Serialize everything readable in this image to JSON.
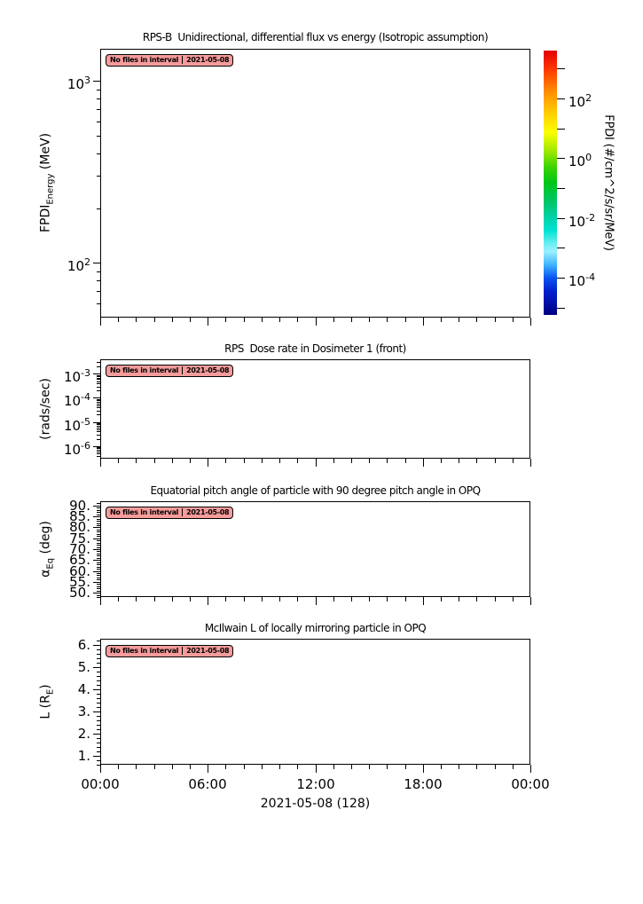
{
  "app": {
    "background": "#ffffff"
  },
  "no_files_badge": {
    "text": "No files in interval",
    "date": "2021-05-08",
    "bg": "#f59b9b",
    "border": "#000000"
  },
  "time_axis": {
    "tick_labels": [
      "00:00",
      "06:00",
      "12:00",
      "18:00",
      "00:00"
    ],
    "xlabel": "2021-05-08 (128)"
  },
  "panels": [
    {
      "title": "RPS-B  Unidirectional, differential flux vs energy (Isotropic assumption)",
      "ylabel": {
        "pre": "FPDI",
        "sub": "Energy",
        "post": " (MeV)"
      },
      "yscale": "log",
      "ylim": [
        50,
        1500
      ],
      "ytick_exponents": [
        3,
        2
      ]
    },
    {
      "title": "RPS  Dose rate in Dosimeter 1 (front)",
      "ylabel": {
        "pre": "(rads/sec)",
        "sub": "",
        "post": ""
      },
      "yscale": "log",
      "ylim": [
        3e-07,
        0.004
      ],
      "ytick_exponents": [
        -3,
        -4,
        -5,
        -6
      ]
    },
    {
      "title": "Equatorial pitch angle of particle with 90 degree pitch angle in OPQ",
      "ylabel": {
        "pre": "α",
        "sub": "Eq",
        "post": " (deg)"
      },
      "yscale": "linear",
      "ylim": [
        48,
        92
      ],
      "ytick_values": [
        90,
        85,
        80,
        75,
        70,
        65,
        60,
        55,
        50
      ],
      "ytick_labels": [
        "90.",
        "85.",
        "80.",
        "75.",
        "70.",
        "65.",
        "60.",
        "55.",
        "50."
      ],
      "minor_step": 1
    },
    {
      "title": "McIlwain L of locally mirroring particle in OPQ",
      "ylabel": {
        "pre": "L (R",
        "sub": "E",
        "post": ")"
      },
      "yscale": "linear",
      "ylim": [
        0.6,
        6.3
      ],
      "ytick_values": [
        6,
        5,
        4,
        3,
        2,
        1
      ],
      "ytick_labels": [
        "6.",
        "5.",
        "4.",
        "3.",
        "2.",
        "1."
      ],
      "minor_step": 0.2
    }
  ],
  "colorbar": {
    "label": "FPDI (#/cm^2/s/sr/MeV)",
    "tick_exponents": [
      3,
      2,
      1,
      0,
      -1,
      -2,
      -3,
      -4,
      -5
    ],
    "labeled_exponents": [
      2,
      0,
      -2,
      -4
    ],
    "gradient": [
      "#e10000 0%",
      "#ff3800 7%",
      "#ff9100 16%",
      "#ffd000 24%",
      "#faff00 31%",
      "#a0e800 38%",
      "#3bd400 44%",
      "#00c619 50%",
      "#00c566 57%",
      "#00d2a8 63%",
      "#00e2d2 68%",
      "#6aeef2 73%",
      "#9bf0ff 76%",
      "#3fb4ff 81%",
      "#0a53f0 86%",
      "#0020cf 91%",
      "#000080 100%"
    ]
  },
  "chart_data": [
    {
      "type": "heatmap",
      "title": "RPS-B  Unidirectional, differential flux vs energy (Isotropic assumption)",
      "xlabel": "2021-05-08 (128)",
      "ylabel": "FPDI_Energy (MeV)",
      "yscale": "log",
      "ylim": [
        50,
        1500
      ],
      "ytick_values": [
        100,
        1000
      ],
      "x_ticks": [
        "00:00",
        "06:00",
        "12:00",
        "18:00",
        "00:00"
      ],
      "x_range_hours": [
        0,
        24
      ],
      "colorbar": {
        "label": "FPDI (#/cm^2/s/sr/MeV)",
        "scale": "log",
        "tick_values": [
          1000,
          100,
          10,
          1,
          0.1,
          0.01,
          0.001,
          0.0001,
          1e-05
        ],
        "labeled_values": [
          100,
          1,
          0.01,
          0.0001
        ]
      },
      "series": [],
      "annotation": "No files in interval 2021-05-08",
      "grid": false
    },
    {
      "type": "line",
      "title": "RPS  Dose rate in Dosimeter 1 (front)",
      "xlabel": "2021-05-08 (128)",
      "ylabel": "(rads/sec)",
      "yscale": "log",
      "ylim": [
        3e-07,
        0.004
      ],
      "ytick_values": [
        0.001,
        0.0001,
        1e-05,
        1e-06
      ],
      "x_ticks": [
        "00:00",
        "06:00",
        "12:00",
        "18:00",
        "00:00"
      ],
      "x_range_hours": [
        0,
        24
      ],
      "series": [],
      "annotation": "No files in interval 2021-05-08",
      "grid": false
    },
    {
      "type": "line",
      "title": "Equatorial pitch angle of particle with 90 degree pitch angle in OPQ",
      "xlabel": "2021-05-08 (128)",
      "ylabel": "alpha_Eq (deg)",
      "yscale": "linear",
      "ylim": [
        48,
        92
      ],
      "ytick_values": [
        90,
        85,
        80,
        75,
        70,
        65,
        60,
        55,
        50
      ],
      "x_ticks": [
        "00:00",
        "06:00",
        "12:00",
        "18:00",
        "00:00"
      ],
      "x_range_hours": [
        0,
        24
      ],
      "series": [],
      "annotation": "No files in interval 2021-05-08",
      "grid": false
    },
    {
      "type": "line",
      "title": "McIlwain L of locally mirroring particle in OPQ",
      "xlabel": "2021-05-08 (128)",
      "ylabel": "L (R_E)",
      "yscale": "linear",
      "ylim": [
        0.6,
        6.3
      ],
      "ytick_values": [
        6,
        5,
        4,
        3,
        2,
        1
      ],
      "x_ticks": [
        "00:00",
        "06:00",
        "12:00",
        "18:00",
        "00:00"
      ],
      "x_range_hours": [
        0,
        24
      ],
      "series": [],
      "annotation": "No files in interval 2021-05-08",
      "grid": false
    }
  ]
}
